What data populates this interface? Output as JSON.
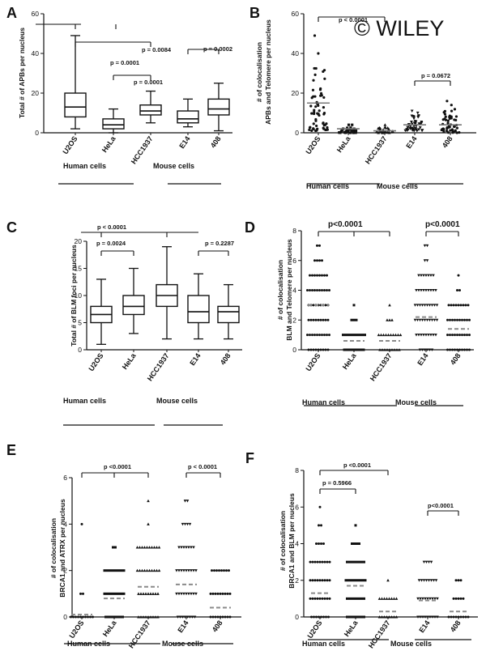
{
  "watermark": "© WILEY",
  "chart_data": [
    {
      "id": "A",
      "type": "box",
      "panel_label": "A",
      "ylabel": "Total # of APBs per nucleus",
      "ylim": [
        0,
        60
      ],
      "yticks": [
        "0",
        "20",
        "40",
        "60"
      ],
      "categories": [
        "U2OS",
        "HeLa",
        "HCC1937",
        "E14",
        "408"
      ],
      "boxes": [
        {
          "min": 2,
          "q1": 8,
          "median": 13,
          "q3": 20,
          "max": 49
        },
        {
          "min": 0,
          "q1": 2,
          "median": 4,
          "q3": 7,
          "max": 12
        },
        {
          "min": 5,
          "q1": 9,
          "median": 11,
          "q3": 14,
          "max": 21
        },
        {
          "min": 3,
          "q1": 5,
          "median": 7,
          "q3": 11,
          "max": 17
        },
        {
          "min": 1,
          "q1": 9,
          "median": 12,
          "q3": 17,
          "max": 25
        }
      ],
      "annotations": [
        "p = 0.0001",
        "p = 0.0084",
        "p = 0.0001",
        "p = 0.0002"
      ],
      "groups": [
        "Human cells",
        "Mouse cells"
      ]
    },
    {
      "id": "B",
      "type": "scatter",
      "panel_label": "B",
      "ylabel": "# of colocalisation\nAPBs and Telomere per nucleus",
      "ylim": [
        0,
        60
      ],
      "yticks": [
        "0",
        "20",
        "40",
        "60"
      ],
      "categories": [
        "U2OS",
        "HeLa",
        "HCC1937",
        "E14",
        "408"
      ],
      "markers": [
        "circle",
        "square",
        "triangle",
        "triangle-down",
        "circle"
      ],
      "means": [
        15,
        2,
        1,
        4,
        4
      ],
      "distributions": [
        {
          "low": 1,
          "high": 35,
          "outliers": [
            40,
            49
          ],
          "n": 60
        },
        {
          "low": 0,
          "high": 3,
          "outliers": [
            4,
            4
          ],
          "n": 30
        },
        {
          "low": 0,
          "high": 3,
          "outliers": [
            4
          ],
          "n": 30
        },
        {
          "low": 1,
          "high": 9,
          "outliers": [
            10,
            11
          ],
          "n": 45
        },
        {
          "low": 0,
          "high": 12,
          "outliers": [
            14,
            16
          ],
          "n": 50
        }
      ],
      "annotations": [
        "p < 0.0001",
        "p = 0.0672"
      ],
      "groups": [
        "Human cells",
        "Mouse cells"
      ]
    },
    {
      "id": "C",
      "type": "box",
      "panel_label": "C",
      "ylabel": "Total # of BLM foci per nucleus",
      "ylim": [
        0,
        20
      ],
      "yticks": [
        "0",
        "5",
        "10",
        "15",
        "20"
      ],
      "categories": [
        "U2OS",
        "HeLa",
        "HCC1937",
        "E14",
        "408"
      ],
      "boxes": [
        {
          "min": 1,
          "q1": 5,
          "median": 6.5,
          "q3": 8,
          "max": 13
        },
        {
          "min": 3,
          "q1": 6.5,
          "median": 8,
          "q3": 10,
          "max": 15
        },
        {
          "min": 2,
          "q1": 8,
          "median": 10,
          "q3": 12,
          "max": 19
        },
        {
          "min": 2,
          "q1": 5,
          "median": 7,
          "q3": 10,
          "max": 14
        },
        {
          "min": 2,
          "q1": 5,
          "median": 7,
          "q3": 8,
          "max": 12
        }
      ],
      "annotations": [
        "p < 0.0001",
        "p = 0.0024",
        "p = 0.2287"
      ],
      "groups": [
        "Human cells",
        "Mouse cells"
      ]
    },
    {
      "id": "D",
      "type": "dot-strip",
      "panel_label": "D",
      "ylabel": "# of colocalisation\nBLM and Telomere per nucleus",
      "ylim": [
        0,
        8
      ],
      "yticks": [
        "0",
        "2",
        "4",
        "6",
        "8"
      ],
      "categories": [
        "U2OS",
        "HeLa",
        "HCC1937",
        "E14",
        "408"
      ],
      "markers": [
        "circle",
        "square",
        "triangle",
        "triangle-down",
        "circle"
      ],
      "means": [
        3,
        0.6,
        0.6,
        2.2,
        1.4
      ],
      "levels": [
        [
          [
            0,
            9
          ],
          [
            1,
            10
          ],
          [
            2,
            11
          ],
          [
            3,
            11
          ],
          [
            4,
            10
          ],
          [
            5,
            8
          ],
          [
            6,
            4
          ],
          [
            7,
            2
          ]
        ],
        [
          [
            0,
            13
          ],
          [
            1,
            12
          ],
          [
            2,
            3
          ],
          [
            3,
            1
          ]
        ],
        [
          [
            0,
            13
          ],
          [
            1,
            12
          ],
          [
            2,
            3
          ],
          [
            3,
            1
          ]
        ],
        [
          [
            0,
            6
          ],
          [
            1,
            9
          ],
          [
            2,
            10
          ],
          [
            3,
            10
          ],
          [
            4,
            9
          ],
          [
            5,
            7
          ],
          [
            6,
            2
          ],
          [
            7,
            2
          ]
        ],
        [
          [
            0,
            12
          ],
          [
            1,
            12
          ],
          [
            2,
            10
          ],
          [
            3,
            9
          ],
          [
            4,
            2
          ],
          [
            5,
            1
          ]
        ]
      ],
      "annotations": [
        "p<0.0001",
        "p<0.0001"
      ],
      "groups": [
        "Human cells",
        "Mouse cells"
      ]
    },
    {
      "id": "E",
      "type": "dot-strip",
      "panel_label": "E",
      "ylabel": "# of colocalisation\nBRCA1 and ATRX per nucleus",
      "ylim": [
        0,
        6
      ],
      "yticks": [
        "0",
        "2",
        "4",
        "6"
      ],
      "categories": [
        "U2OS",
        "HeLa",
        "HCC1937",
        "E14",
        "408"
      ],
      "markers": [
        "circle",
        "square",
        "triangle",
        "triangle-down",
        "circle"
      ],
      "means": [
        0.1,
        0.8,
        1.3,
        1.4,
        0.4
      ],
      "levels": [
        [
          [
            0,
            10
          ],
          [
            1,
            2
          ],
          [
            4,
            1
          ]
        ],
        [
          [
            0,
            8
          ],
          [
            1,
            9
          ],
          [
            2,
            9
          ],
          [
            3,
            2
          ]
        ],
        [
          [
            0,
            9
          ],
          [
            1,
            9
          ],
          [
            2,
            10
          ],
          [
            3,
            10
          ],
          [
            4,
            1
          ],
          [
            5,
            1
          ]
        ],
        [
          [
            0,
            8
          ],
          [
            1,
            9
          ],
          [
            2,
            9
          ],
          [
            3,
            7
          ],
          [
            4,
            4
          ],
          [
            5,
            2
          ]
        ],
        [
          [
            0,
            9
          ],
          [
            1,
            9
          ],
          [
            2,
            8
          ]
        ]
      ],
      "annotations": [
        "p <0.0001",
        "p < 0.0001"
      ],
      "groups": [
        "Human cells",
        "Mouse cells"
      ]
    },
    {
      "id": "F",
      "type": "dot-strip",
      "panel_label": "F",
      "ylabel": "# of colocalisation\nBRCA1 and BLM per nucleus",
      "ylim": [
        0,
        8
      ],
      "yticks": [
        "0",
        "2",
        "4",
        "6",
        "8"
      ],
      "categories": [
        "U2OS",
        "HeLa",
        "HCC1937",
        "E14",
        "408"
      ],
      "markers": [
        "circle",
        "square",
        "triangle",
        "triangle-down",
        "circle"
      ],
      "means": [
        1.3,
        1.7,
        0.3,
        0.9,
        0.3
      ],
      "levels": [
        [
          [
            0,
            10
          ],
          [
            1,
            11
          ],
          [
            2,
            11
          ],
          [
            3,
            9
          ],
          [
            4,
            4
          ],
          [
            5,
            2
          ],
          [
            6,
            1
          ]
        ],
        [
          [
            0,
            8
          ],
          [
            1,
            10
          ],
          [
            2,
            11
          ],
          [
            3,
            10
          ],
          [
            4,
            4
          ],
          [
            5,
            1
          ]
        ],
        [
          [
            0,
            12
          ],
          [
            1,
            8
          ],
          [
            2,
            1
          ]
        ],
        [
          [
            0,
            9
          ],
          [
            1,
            9
          ],
          [
            2,
            10
          ],
          [
            3,
            4
          ]
        ],
        [
          [
            0,
            11
          ],
          [
            1,
            5
          ],
          [
            2,
            3
          ]
        ]
      ],
      "annotations": [
        "p <0.0001",
        "p = 0.5966",
        "p<0.0001"
      ],
      "groups": [
        "Human cells",
        "Mouse cells"
      ]
    }
  ]
}
